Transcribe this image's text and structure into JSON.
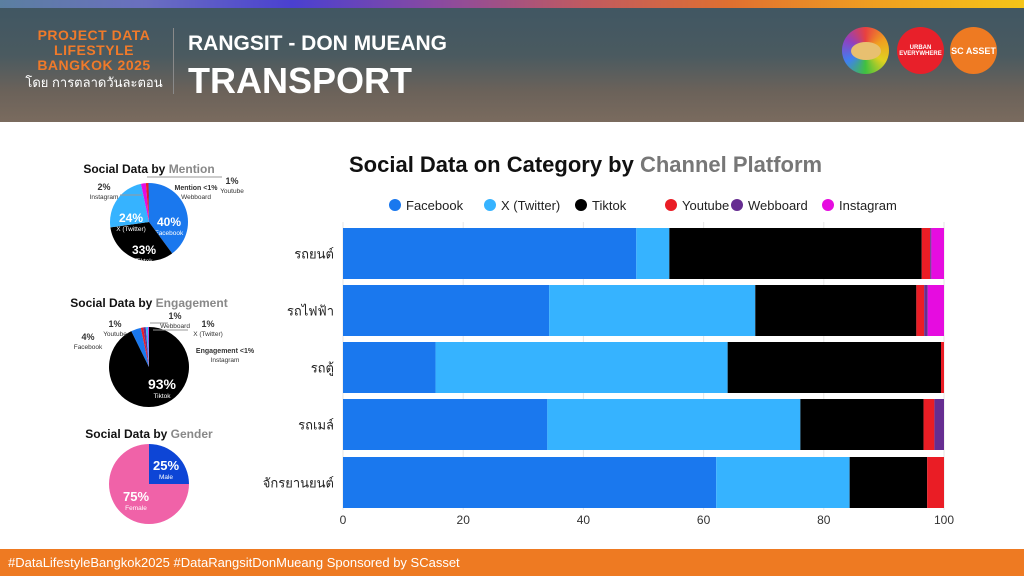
{
  "header": {
    "brand_lines": [
      "PROJECT DATA",
      "LIFESTYLE",
      "BANGKOK 2025"
    ],
    "brand_thai": "โดย การตลาดวันละตอน",
    "subtitle": "RANGSIT - DON MUEANG",
    "title": "TRANSPORT",
    "logos": [
      {
        "name": "hat-avatar-logo",
        "color": "#e8c070",
        "text": ""
      },
      {
        "name": "urban-everywhere-logo",
        "color": "#e8202a",
        "text": "URBAN EVERYWHERE"
      },
      {
        "name": "sc-asset-logo",
        "color": "#ee7a22",
        "text": "SC ASSET"
      }
    ]
  },
  "footer": {
    "text": "#DataLifestyleBangkok2025 #DataRangsitDonMueang Sponsored by SCasset"
  },
  "colors": {
    "Facebook": "#1a78ee",
    "X (Twitter)": "#36b3ff",
    "Tiktok": "#000000",
    "Youtube": "#ea1d25",
    "Webboard": "#662d91",
    "Instagram": "#e60ce0",
    "Male": "#0d45d6",
    "Female": "#f062a8"
  },
  "chart_data": [
    {
      "type": "bar",
      "orientation": "horizontal",
      "stacked": true,
      "title_main": "Social Data on Category by ",
      "title_accent": "Channel Platform",
      "categories": [
        "รถยนต์",
        "รถไฟฟ้า",
        "รถตู้",
        "รถเมล์",
        "จักรยานยนต์"
      ],
      "series": [
        {
          "name": "Facebook",
          "values": [
            48.8,
            34.3,
            15.4,
            34.0,
            62.1
          ]
        },
        {
          "name": "X (Twitter)",
          "values": [
            5.5,
            34.3,
            48.6,
            42.1,
            22.2
          ]
        },
        {
          "name": "Tiktok",
          "values": [
            42.0,
            26.8,
            35.5,
            20.5,
            12.9
          ]
        },
        {
          "name": "Youtube",
          "values": [
            1.4,
            1.3,
            0.5,
            1.8,
            2.8
          ]
        },
        {
          "name": "Webboard",
          "values": [
            0.2,
            0.6,
            0,
            1.6,
            0
          ]
        },
        {
          "name": "Instagram",
          "values": [
            2.1,
            2.7,
            0,
            0,
            0
          ]
        }
      ],
      "xlim": [
        0,
        100
      ],
      "xticks": [
        "0",
        "20",
        "40",
        "60",
        "80",
        "100"
      ],
      "legend": "top",
      "grid": true
    },
    {
      "type": "pie",
      "title_main": "Social Data by ",
      "title_accent": "Mention",
      "slices": [
        {
          "name": "Facebook",
          "value": 40,
          "label": "40%"
        },
        {
          "name": "Tiktok",
          "value": 33,
          "label": "33%"
        },
        {
          "name": "X (Twitter)",
          "value": 24,
          "label": "24%"
        },
        {
          "name": "Instagram",
          "value": 2,
          "label": "2%"
        },
        {
          "name": "Youtube",
          "value": 1,
          "label": "1%"
        },
        {
          "name": "Webboard",
          "value": 0.3,
          "label": "Mention <1%"
        }
      ]
    },
    {
      "type": "pie",
      "title_main": "Social Data by ",
      "title_accent": "Engagement",
      "slices": [
        {
          "name": "Tiktok",
          "value": 93,
          "label": "93%"
        },
        {
          "name": "Facebook",
          "value": 4,
          "label": "4%"
        },
        {
          "name": "Youtube",
          "value": 1,
          "label": "1%"
        },
        {
          "name": "Webboard",
          "value": 1,
          "label": "1%"
        },
        {
          "name": "X (Twitter)",
          "value": 1,
          "label": "1%"
        },
        {
          "name": "Instagram",
          "value": 0.3,
          "label": "Engagement <1%"
        }
      ]
    },
    {
      "type": "pie",
      "title_main": "Social Data by ",
      "title_accent": "Gender",
      "slices": [
        {
          "name": "Male",
          "value": 25,
          "label": "25%"
        },
        {
          "name": "Female",
          "value": 75,
          "label": "75%"
        }
      ]
    }
  ]
}
